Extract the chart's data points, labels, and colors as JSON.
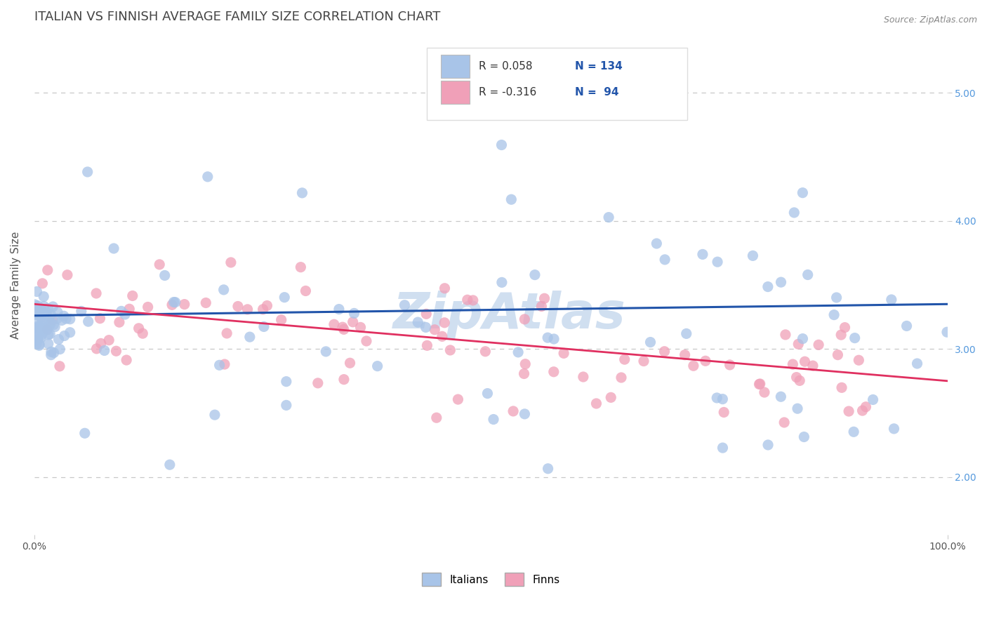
{
  "title": "ITALIAN VS FINNISH AVERAGE FAMILY SIZE CORRELATION CHART",
  "source_text": "Source: ZipAtlas.com",
  "ylabel": "Average Family Size",
  "xlim": [
    0.0,
    1.0
  ],
  "ylim": [
    1.55,
    5.45
  ],
  "yticks": [
    2.0,
    3.0,
    4.0,
    5.0
  ],
  "xticks": [
    0.0,
    1.0
  ],
  "xticklabels": [
    "0.0%",
    "100.0%"
  ],
  "italian_color": "#a8c4e8",
  "finnish_color": "#f0a0b8",
  "italian_line_color": "#2255aa",
  "finnish_line_color": "#e03060",
  "italian_R": 0.058,
  "italian_N": 134,
  "finnish_R": -0.316,
  "finnish_N": 94,
  "legend_label_italian": "Italians",
  "legend_label_finnish": "Finns",
  "background_color": "#ffffff",
  "grid_color": "#c8c8c8",
  "title_color": "#444444",
  "title_fontsize": 13,
  "axis_label_fontsize": 11,
  "tick_fontsize": 10,
  "right_tick_color": "#5599dd",
  "watermark_text": "ZipAtlas",
  "watermark_color": "#d0dff0",
  "watermark_fontsize": 52,
  "seed": 7,
  "italian_line_y0": 3.26,
  "italian_line_y1": 3.35,
  "finnish_line_y0": 3.35,
  "finnish_line_y1": 2.75
}
